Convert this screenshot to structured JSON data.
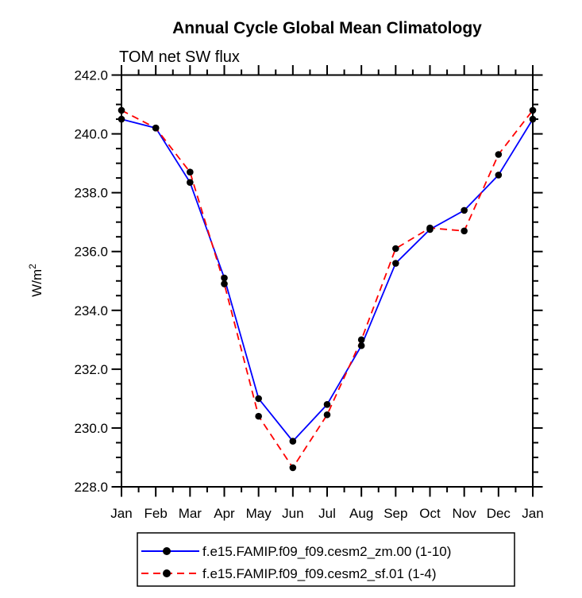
{
  "chart_data": {
    "type": "line",
    "title": "Annual Cycle Global Mean Climatology",
    "subtitle": "TOM net SW flux",
    "ylabel": "W/m",
    "ylabel_exponent": "2",
    "x_categories": [
      "Jan",
      "Feb",
      "Mar",
      "Apr",
      "May",
      "Jun",
      "Jul",
      "Aug",
      "Sep",
      "Oct",
      "Nov",
      "Dec",
      "Jan"
    ],
    "ylim": [
      228.0,
      242.0
    ],
    "y_major_step": 2.0,
    "y_minor_step": 0.5,
    "x_minor_step": 0.5,
    "y_tick_labels": [
      "242.0",
      "240.0",
      "238.0",
      "236.0",
      "234.0",
      "232.0",
      "230.0",
      "228.0"
    ],
    "grid": false,
    "legend_position": "bottom",
    "frame_color": "#000000",
    "marker_color": "#000000",
    "series": [
      {
        "name": "f.e15.FAMIP.f09_f09.cesm2_zm.00 (1-10)",
        "color": "#0000ff",
        "style": "solid",
        "marker": "dot",
        "values": [
          240.5,
          240.2,
          238.35,
          235.1,
          231.0,
          229.55,
          230.8,
          232.8,
          235.6,
          236.75,
          237.4,
          238.6,
          240.5
        ]
      },
      {
        "name": "f.e15.FAMIP.f09_f09.cesm2_sf.01 (1-4)",
        "color": "#ff0000",
        "style": "dashed",
        "marker": "dot",
        "values": [
          240.8,
          240.2,
          238.7,
          234.9,
          230.4,
          228.65,
          230.45,
          233.0,
          236.1,
          236.8,
          236.7,
          239.3,
          240.8
        ]
      }
    ]
  }
}
